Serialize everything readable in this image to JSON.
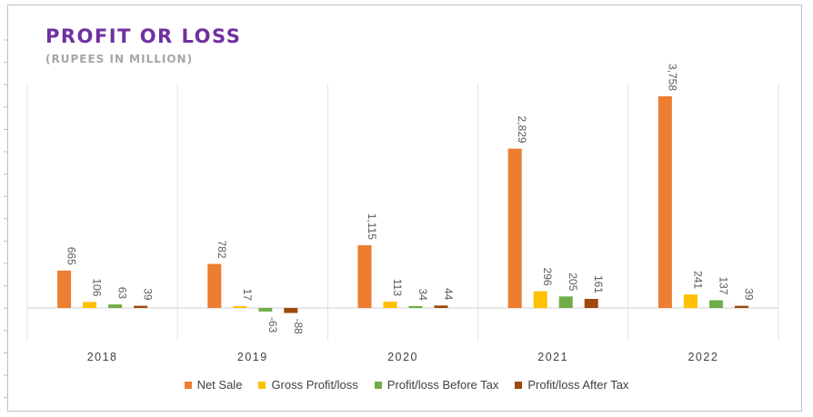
{
  "chart_data": {
    "type": "bar",
    "title": "PROFIT OR LOSS",
    "subtitle": "(RUPEES IN MILLION)",
    "categories": [
      "2018",
      "2019",
      "2020",
      "2021",
      "2022"
    ],
    "series": [
      {
        "name": "Net Sale",
        "color": "#ed7d31",
        "values": [
          665,
          782,
          1115,
          2829,
          3758
        ],
        "labels": [
          "665",
          "782",
          "1,115",
          "2,829",
          "3,758"
        ]
      },
      {
        "name": "Gross Profit/loss",
        "color": "#ffc000",
        "values": [
          106,
          17,
          113,
          296,
          241
        ],
        "labels": [
          "106",
          "17",
          "113",
          "296",
          "241"
        ]
      },
      {
        "name": "Profit/loss Before Tax",
        "color": "#70ad47",
        "values": [
          63,
          -63,
          34,
          205,
          137
        ],
        "labels": [
          "63",
          "-63",
          "34",
          "205",
          "137"
        ]
      },
      {
        "name": "Profit/loss After Tax",
        "color": "#9e480e",
        "values": [
          39,
          -88,
          44,
          161,
          39
        ],
        "labels": [
          "39",
          "-88",
          "44",
          "161",
          "39"
        ]
      }
    ],
    "legend_position": "bottom",
    "grid": false
  }
}
